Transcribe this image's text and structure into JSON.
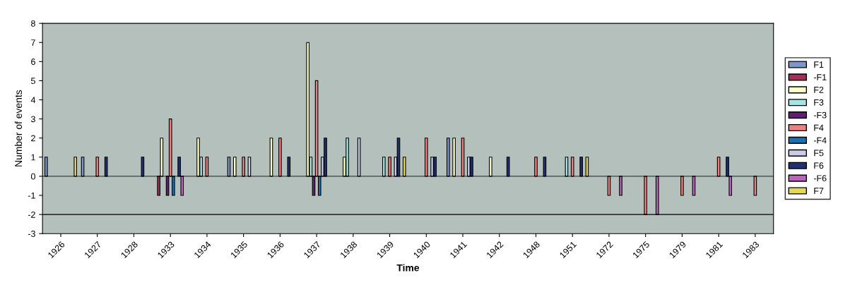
{
  "chart_data": {
    "type": "bar",
    "xlabel": "Time",
    "ylabel": "Number of events",
    "categories": [
      "1926",
      "1927",
      "1928",
      "1933",
      "1934",
      "1935",
      "1936",
      "1937",
      "1938",
      "1939",
      "1940",
      "1941",
      "1942",
      "1948",
      "1951",
      "1972",
      "1975",
      "1979",
      "1981",
      "1983"
    ],
    "series": [
      {
        "name": "F1",
        "color": "#7f96c8",
        "values": [
          1,
          1,
          null,
          null,
          null,
          1,
          null,
          null,
          null,
          null,
          null,
          2,
          null,
          null,
          null,
          null,
          null,
          null,
          null,
          null
        ]
      },
      {
        "name": "-F1",
        "color": "#a0305a",
        "values": [
          null,
          null,
          null,
          -1,
          null,
          null,
          null,
          null,
          null,
          null,
          null,
          null,
          null,
          null,
          null,
          null,
          null,
          null,
          null,
          null
        ]
      },
      {
        "name": "F2",
        "color": "#ffffc8",
        "values": [
          null,
          null,
          null,
          2,
          2,
          1,
          2,
          7,
          1,
          null,
          null,
          2,
          1,
          null,
          null,
          null,
          null,
          null,
          null,
          null
        ]
      },
      {
        "name": "F3",
        "color": "#a8e4e4",
        "values": [
          null,
          null,
          null,
          null,
          1,
          null,
          null,
          1,
          2,
          1,
          null,
          null,
          null,
          null,
          1,
          null,
          null,
          null,
          null,
          null
        ]
      },
      {
        "name": "-F3",
        "color": "#602070",
        "values": [
          null,
          null,
          null,
          -1,
          null,
          null,
          null,
          -1,
          null,
          null,
          null,
          null,
          null,
          null,
          null,
          null,
          null,
          null,
          null,
          null
        ]
      },
      {
        "name": "F4",
        "color": "#f08080",
        "values": [
          null,
          1,
          null,
          3,
          1,
          1,
          2,
          5,
          null,
          1,
          2,
          2,
          null,
          1,
          1,
          -1,
          -2,
          -1,
          1,
          -1
        ]
      },
      {
        "name": "-F4",
        "color": "#1a70b0",
        "values": [
          null,
          null,
          null,
          -1,
          null,
          null,
          null,
          -1,
          null,
          null,
          null,
          null,
          null,
          null,
          null,
          null,
          null,
          null,
          null,
          null
        ]
      },
      {
        "name": "F5",
        "color": "#c8cce8",
        "values": [
          null,
          null,
          null,
          null,
          null,
          1,
          null,
          1,
          2,
          1,
          1,
          1,
          null,
          null,
          null,
          null,
          null,
          null,
          null,
          null
        ]
      },
      {
        "name": "F6",
        "color": "#203070",
        "values": [
          null,
          1,
          1,
          1,
          null,
          null,
          1,
          2,
          null,
          2,
          1,
          1,
          1,
          1,
          1,
          null,
          null,
          null,
          1,
          null
        ]
      },
      {
        "name": "-F6",
        "color": "#c060c0",
        "values": [
          null,
          null,
          null,
          -1,
          null,
          null,
          null,
          null,
          null,
          null,
          null,
          null,
          null,
          null,
          null,
          -1,
          -2,
          -1,
          -1,
          null
        ]
      },
      {
        "name": "F7",
        "color": "#e8d850",
        "values": [
          1,
          null,
          null,
          null,
          null,
          null,
          null,
          null,
          null,
          1,
          null,
          null,
          null,
          null,
          1,
          null,
          null,
          null,
          null,
          null
        ]
      }
    ],
    "ylim": [
      -3,
      8
    ],
    "yticks": [
      -3,
      -2,
      -1,
      0,
      1,
      2,
      3,
      4,
      5,
      6,
      7,
      8
    ],
    "ref_lines": [
      {
        "axis": "y",
        "value": -2,
        "color": "#000000"
      }
    ],
    "grid": false,
    "legend": "right"
  }
}
